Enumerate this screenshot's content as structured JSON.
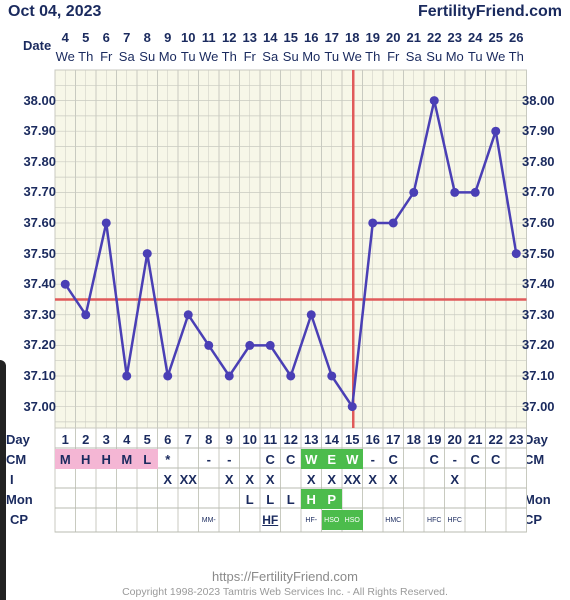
{
  "header": {
    "date": "Oct 04, 2023",
    "brand": "FertilityFriend.com"
  },
  "labels": {
    "date_row": "Date",
    "day_row": "Day",
    "cm_row": "CM",
    "i_row": "I",
    "mon_row": "Mon",
    "cp_row": "CP"
  },
  "chart_data": {
    "type": "line",
    "title": "",
    "xlabel": "",
    "ylabel": "",
    "ylim": [
      36.93,
      38.1
    ],
    "yticks": [
      "38.00",
      "37.90",
      "37.80",
      "37.70",
      "37.60",
      "37.50",
      "37.40",
      "37.30",
      "37.20",
      "37.10",
      "37.00"
    ],
    "dates": [
      "4",
      "5",
      "6",
      "7",
      "8",
      "9",
      "10",
      "11",
      "12",
      "13",
      "14",
      "15",
      "16",
      "17",
      "18",
      "19",
      "20",
      "21",
      "22",
      "23",
      "24",
      "25",
      "26"
    ],
    "weekdays": [
      "We",
      "Th",
      "Fr",
      "Sa",
      "Su",
      "Mo",
      "Tu",
      "We",
      "Th",
      "Fr",
      "Sa",
      "Su",
      "Mo",
      "Tu",
      "We",
      "Th",
      "Fr",
      "Sa",
      "Su",
      "Mo",
      "Tu",
      "We",
      "Th"
    ],
    "days": [
      "1",
      "2",
      "3",
      "4",
      "5",
      "6",
      "7",
      "8",
      "9",
      "10",
      "11",
      "12",
      "13",
      "14",
      "15",
      "16",
      "17",
      "18",
      "19",
      "20",
      "21",
      "22",
      "23"
    ],
    "series": [
      {
        "values": [
          37.4,
          37.3,
          37.6,
          37.1,
          37.5,
          37.1,
          37.3,
          37.2,
          37.1,
          37.2,
          37.2,
          37.1,
          37.3,
          37.1,
          37.0,
          37.6,
          37.6,
          37.7,
          38.0,
          37.7,
          37.7,
          37.9,
          37.5
        ]
      }
    ],
    "coverline": 37.35,
    "ovulation_day": 15,
    "grid": true,
    "colors": {
      "line": "#4a3fb5",
      "coverline": "#e05a5a",
      "ovulation": "#e05a5a",
      "grid": "#c8cac0",
      "plot_bg": "#f7f7e8"
    }
  },
  "cm": [
    "M",
    "H",
    "H",
    "M",
    "L",
    "*",
    "",
    "-",
    "-",
    "",
    "C",
    "C",
    "W",
    "E",
    "W",
    "-",
    "C",
    "",
    "C",
    "-",
    "C",
    "C",
    ""
  ],
  "cm_colors": [
    "pink",
    "pink",
    "pink",
    "pink",
    "pink",
    "",
    "",
    "",
    "",
    "",
    "",
    "",
    "green",
    "green",
    "green",
    "",
    "",
    "",
    "",
    "",
    "",
    "",
    ""
  ],
  "intercourse": [
    "",
    "",
    "",
    "",
    "",
    "X",
    "XX",
    "",
    "X",
    "X",
    "X",
    "",
    "X",
    "X",
    "XX",
    "X",
    "X",
    "",
    "",
    "X",
    "",
    "",
    ""
  ],
  "mon": [
    "",
    "",
    "",
    "",
    "",
    "",
    "",
    "",
    "",
    "L",
    "L",
    "L",
    "H",
    "P",
    "",
    "",
    "",
    "",
    "",
    "",
    "",
    "",
    ""
  ],
  "mon_colors": [
    "",
    "",
    "",
    "",
    "",
    "",
    "",
    "",
    "",
    "",
    "",
    "",
    "green",
    "green",
    "",
    "",
    "",
    "",
    "",
    "",
    "",
    "",
    ""
  ],
  "cp": [
    "",
    "",
    "",
    "",
    "",
    "",
    "",
    "MM-",
    "",
    "",
    "HF",
    "",
    "HF-",
    "HSO",
    "HSO",
    "",
    "HMC",
    "",
    "HFC",
    "HFC",
    "",
    "",
    ""
  ],
  "cp_colors": [
    "",
    "",
    "",
    "",
    "",
    "",
    "",
    "",
    "",
    "",
    "",
    "",
    "",
    "green",
    "green",
    "",
    "",
    "",
    "",
    "",
    "",
    "",
    ""
  ],
  "footer": {
    "url": "https://FertilityFriend.com",
    "copyright": "Copyright 1998-2023 Tamtris Web Services Inc. - All Rights Reserved."
  }
}
